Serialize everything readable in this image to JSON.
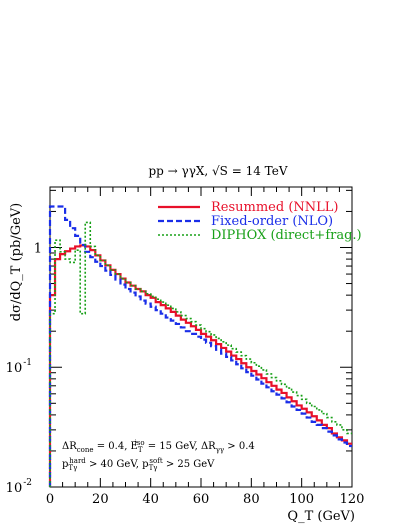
{
  "chart_data": {
    "type": "line",
    "style": "histogram-step",
    "title": "pp → γγX, √S = 14 TeV",
    "xlabel": "Q_T (GeV)",
    "ylabel": "dσ/dQ_T (pb/GeV)",
    "xlim": [
      0,
      120
    ],
    "ylim": [
      0.01,
      3.2
    ],
    "yscale": "log",
    "grid": false,
    "legend_position": "top-right",
    "x_ticks": [
      0,
      20,
      40,
      60,
      80,
      100,
      120
    ],
    "x_tick_labels": [
      "0",
      "20",
      "40",
      "60",
      "80",
      "100",
      "120"
    ],
    "y_ticks": [
      0.01,
      0.1,
      1
    ],
    "y_tick_labels": [
      {
        "base": "10",
        "exp": "-2"
      },
      {
        "base": "10",
        "exp": "-1"
      },
      {
        "base": "1",
        "exp": ""
      }
    ],
    "bin_width": 2,
    "bin_edges_start": 0,
    "series": [
      {
        "name": "Resummed (NNLL)",
        "color": "#e8102a",
        "dash": "solid",
        "values": [
          0.4,
          0.8,
          0.88,
          0.93,
          0.98,
          1.02,
          1.04,
          1.02,
          0.95,
          0.86,
          0.78,
          0.71,
          0.65,
          0.6,
          0.55,
          0.51,
          0.48,
          0.45,
          0.43,
          0.4,
          0.38,
          0.35,
          0.33,
          0.31,
          0.29,
          0.27,
          0.25,
          0.235,
          0.22,
          0.205,
          0.19,
          0.18,
          0.168,
          0.156,
          0.145,
          0.135,
          0.125,
          0.117,
          0.108,
          0.1,
          0.093,
          0.087,
          0.081,
          0.075,
          0.07,
          0.065,
          0.061,
          0.056,
          0.052,
          0.048,
          0.045,
          0.042,
          0.039,
          0.036,
          0.033,
          0.031,
          0.028,
          0.026,
          0.0245,
          0.023
        ]
      },
      {
        "name": "Fixed-order (NLO)",
        "color": "#1a2ee8",
        "dash": "dashed",
        "values": [
          2.2,
          2.2,
          2.2,
          1.7,
          1.45,
          1.25,
          1.05,
          0.92,
          0.83,
          0.76,
          0.7,
          0.64,
          0.59,
          0.54,
          0.49,
          0.45,
          0.42,
          0.39,
          0.36,
          0.34,
          0.32,
          0.3,
          0.28,
          0.26,
          0.245,
          0.23,
          0.215,
          0.2,
          0.19,
          0.18,
          0.17,
          0.16,
          0.15,
          0.14,
          0.13,
          0.122,
          0.114,
          0.106,
          0.098,
          0.091,
          0.085,
          0.079,
          0.073,
          0.068,
          0.063,
          0.059,
          0.055,
          0.051,
          0.047,
          0.044,
          0.041,
          0.038,
          0.035,
          0.033,
          0.031,
          0.029,
          0.027,
          0.025,
          0.0235,
          0.022
        ]
      },
      {
        "name": "DIPHOX (direct+frag.)",
        "color": "#18a018",
        "dash": "dotted",
        "values": [
          0.28,
          1.15,
          0.92,
          0.8,
          0.75,
          0.95,
          0.28,
          1.62,
          1.02,
          0.86,
          0.78,
          0.71,
          0.65,
          0.6,
          0.55,
          0.51,
          0.48,
          0.45,
          0.43,
          0.41,
          0.39,
          0.37,
          0.35,
          0.33,
          0.31,
          0.29,
          0.27,
          0.255,
          0.24,
          0.225,
          0.21,
          0.198,
          0.186,
          0.174,
          0.163,
          0.153,
          0.143,
          0.134,
          0.125,
          0.117,
          0.109,
          0.102,
          0.095,
          0.088,
          0.082,
          0.077,
          0.072,
          0.067,
          0.062,
          0.058,
          0.054,
          0.05,
          0.047,
          0.044,
          0.041,
          0.038,
          0.035,
          0.033,
          0.03,
          0.028
        ]
      }
    ],
    "annotations": [
      {
        "id": "cuts1",
        "segments": [
          {
            "text": "ΔR",
            "shift": ""
          },
          {
            "text": "cone",
            "shift": "sub"
          },
          {
            "text": " = 0.4, E",
            "shift": ""
          },
          {
            "text": "T",
            "shift": "sub"
          },
          {
            "text": "iso",
            "shift": "sup"
          },
          {
            "text": " = 15 GeV, ΔR",
            "shift": ""
          },
          {
            "text": "γγ",
            "shift": "sub"
          },
          {
            "text": " > 0.4",
            "shift": ""
          }
        ]
      },
      {
        "id": "cuts2",
        "segments": [
          {
            "text": "p",
            "shift": ""
          },
          {
            "text": "Tγ",
            "shift": "sub"
          },
          {
            "text": "hard",
            "shift": "sup"
          },
          {
            "text": " > 40 GeV, p",
            "shift": ""
          },
          {
            "text": "Tγ",
            "shift": "sub"
          },
          {
            "text": "soft",
            "shift": "sup"
          },
          {
            "text": " > 25 GeV",
            "shift": ""
          }
        ]
      }
    ]
  }
}
